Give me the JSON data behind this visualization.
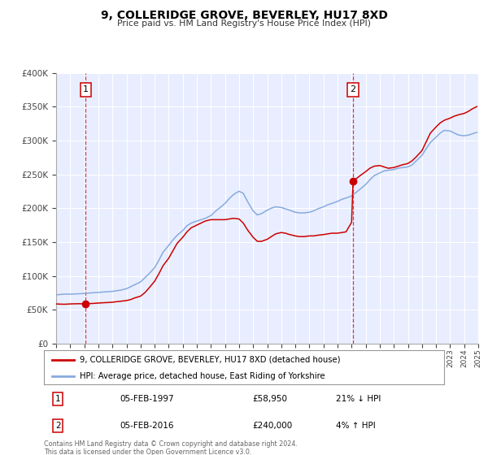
{
  "title": "9, COLLERIDGE GROVE, BEVERLEY, HU17 8XD",
  "subtitle": "Price paid vs. HM Land Registry's House Price Index (HPI)",
  "legend_label_red": "9, COLLERIDGE GROVE, BEVERLEY, HU17 8XD (detached house)",
  "legend_label_blue": "HPI: Average price, detached house, East Riding of Yorkshire",
  "ylim": [
    0,
    400000
  ],
  "yticks": [
    0,
    50000,
    100000,
    150000,
    200000,
    250000,
    300000,
    350000,
    400000
  ],
  "ytick_labels": [
    "£0",
    "£50K",
    "£100K",
    "£150K",
    "£200K",
    "£250K",
    "£300K",
    "£350K",
    "£400K"
  ],
  "plot_bg_color": "#e8eeff",
  "grid_color": "#ffffff",
  "red_color": "#cc0000",
  "blue_color": "#88aadd",
  "marker1_year": 1997.1,
  "marker1_value": 58950,
  "marker1_label": "1",
  "marker1_date": "05-FEB-1997",
  "marker1_price": "£58,950",
  "marker1_hpi": "21% ↓ HPI",
  "marker2_year": 2016.1,
  "marker2_value": 240000,
  "marker2_label": "2",
  "marker2_date": "05-FEB-2016",
  "marker2_price": "£240,000",
  "marker2_hpi": "4% ↑ HPI",
  "vline1_year": 1997.1,
  "vline2_year": 2016.1,
  "footer": "Contains HM Land Registry data © Crown copyright and database right 2024.\nThis data is licensed under the Open Government Licence v3.0.",
  "hpi_data": [
    [
      1995.0,
      72000
    ],
    [
      1995.3,
      72500
    ],
    [
      1995.6,
      73000
    ],
    [
      1996.0,
      73000
    ],
    [
      1996.3,
      73200
    ],
    [
      1996.6,
      73500
    ],
    [
      1997.0,
      74000
    ],
    [
      1997.3,
      74500
    ],
    [
      1997.6,
      75000
    ],
    [
      1998.0,
      75500
    ],
    [
      1998.3,
      76000
    ],
    [
      1998.6,
      76500
    ],
    [
      1999.0,
      77000
    ],
    [
      1999.3,
      78000
    ],
    [
      1999.6,
      79000
    ],
    [
      2000.0,
      81000
    ],
    [
      2000.3,
      84000
    ],
    [
      2000.6,
      87000
    ],
    [
      2001.0,
      91000
    ],
    [
      2001.3,
      97000
    ],
    [
      2001.6,
      103000
    ],
    [
      2002.0,
      112000
    ],
    [
      2002.3,
      123000
    ],
    [
      2002.6,
      135000
    ],
    [
      2003.0,
      145000
    ],
    [
      2003.3,
      153000
    ],
    [
      2003.6,
      160000
    ],
    [
      2004.0,
      167000
    ],
    [
      2004.3,
      174000
    ],
    [
      2004.6,
      178000
    ],
    [
      2005.0,
      181000
    ],
    [
      2005.3,
      183000
    ],
    [
      2005.6,
      185000
    ],
    [
      2006.0,
      189000
    ],
    [
      2006.3,
      195000
    ],
    [
      2006.6,
      200000
    ],
    [
      2007.0,
      207000
    ],
    [
      2007.3,
      214000
    ],
    [
      2007.6,
      220000
    ],
    [
      2008.0,
      225000
    ],
    [
      2008.3,
      222000
    ],
    [
      2008.6,
      210000
    ],
    [
      2009.0,
      196000
    ],
    [
      2009.3,
      190000
    ],
    [
      2009.6,
      192000
    ],
    [
      2010.0,
      197000
    ],
    [
      2010.3,
      200000
    ],
    [
      2010.6,
      202000
    ],
    [
      2011.0,
      201000
    ],
    [
      2011.3,
      199000
    ],
    [
      2011.6,
      197000
    ],
    [
      2012.0,
      194000
    ],
    [
      2012.3,
      193000
    ],
    [
      2012.6,
      193000
    ],
    [
      2013.0,
      194000
    ],
    [
      2013.3,
      196000
    ],
    [
      2013.6,
      199000
    ],
    [
      2014.0,
      202000
    ],
    [
      2014.3,
      205000
    ],
    [
      2014.6,
      207000
    ],
    [
      2015.0,
      210000
    ],
    [
      2015.3,
      213000
    ],
    [
      2015.6,
      215000
    ],
    [
      2016.0,
      218000
    ],
    [
      2016.3,
      223000
    ],
    [
      2016.6,
      228000
    ],
    [
      2017.0,
      235000
    ],
    [
      2017.3,
      242000
    ],
    [
      2017.6,
      248000
    ],
    [
      2018.0,
      252000
    ],
    [
      2018.3,
      255000
    ],
    [
      2018.6,
      256000
    ],
    [
      2019.0,
      257000
    ],
    [
      2019.3,
      259000
    ],
    [
      2019.6,
      260000
    ],
    [
      2020.0,
      261000
    ],
    [
      2020.3,
      264000
    ],
    [
      2020.6,
      270000
    ],
    [
      2021.0,
      278000
    ],
    [
      2021.3,
      288000
    ],
    [
      2021.6,
      297000
    ],
    [
      2022.0,
      305000
    ],
    [
      2022.3,
      311000
    ],
    [
      2022.6,
      315000
    ],
    [
      2023.0,
      314000
    ],
    [
      2023.3,
      311000
    ],
    [
      2023.6,
      308000
    ],
    [
      2024.0,
      307000
    ],
    [
      2024.3,
      308000
    ],
    [
      2024.6,
      310000
    ],
    [
      2024.9,
      312000
    ]
  ],
  "price_data": [
    [
      1995.0,
      58500
    ],
    [
      1995.3,
      58200
    ],
    [
      1995.6,
      58000
    ],
    [
      1996.0,
      58500
    ],
    [
      1996.3,
      58700
    ],
    [
      1996.6,
      58800
    ],
    [
      1997.0,
      58700
    ],
    [
      1997.1,
      58950
    ],
    [
      1997.3,
      59000
    ],
    [
      1997.6,
      59200
    ],
    [
      1998.0,
      59800
    ],
    [
      1998.3,
      60200
    ],
    [
      1998.6,
      60500
    ],
    [
      1999.0,
      61000
    ],
    [
      1999.3,
      61800
    ],
    [
      1999.6,
      62500
    ],
    [
      2000.0,
      63500
    ],
    [
      2000.3,
      65000
    ],
    [
      2000.6,
      67500
    ],
    [
      2001.0,
      70000
    ],
    [
      2001.3,
      75000
    ],
    [
      2001.6,
      82000
    ],
    [
      2002.0,
      92000
    ],
    [
      2002.3,
      103000
    ],
    [
      2002.6,
      115000
    ],
    [
      2003.0,
      126000
    ],
    [
      2003.3,
      137000
    ],
    [
      2003.6,
      148000
    ],
    [
      2004.0,
      157000
    ],
    [
      2004.3,
      165000
    ],
    [
      2004.6,
      171000
    ],
    [
      2005.0,
      175000
    ],
    [
      2005.3,
      178000
    ],
    [
      2005.6,
      181000
    ],
    [
      2006.0,
      183000
    ],
    [
      2006.3,
      183000
    ],
    [
      2006.6,
      183000
    ],
    [
      2007.0,
      183000
    ],
    [
      2007.3,
      184000
    ],
    [
      2007.6,
      185000
    ],
    [
      2008.0,
      184000
    ],
    [
      2008.3,
      178000
    ],
    [
      2008.6,
      168000
    ],
    [
      2009.0,
      157000
    ],
    [
      2009.3,
      151000
    ],
    [
      2009.6,
      151000
    ],
    [
      2010.0,
      154000
    ],
    [
      2010.3,
      158000
    ],
    [
      2010.6,
      162000
    ],
    [
      2011.0,
      164000
    ],
    [
      2011.3,
      163000
    ],
    [
      2011.6,
      161000
    ],
    [
      2012.0,
      159000
    ],
    [
      2012.3,
      158000
    ],
    [
      2012.6,
      158000
    ],
    [
      2013.0,
      159000
    ],
    [
      2013.3,
      159000
    ],
    [
      2013.6,
      160000
    ],
    [
      2014.0,
      161000
    ],
    [
      2014.3,
      162000
    ],
    [
      2014.6,
      163000
    ],
    [
      2015.0,
      163000
    ],
    [
      2015.3,
      164000
    ],
    [
      2015.6,
      165000
    ],
    [
      2016.0,
      179000
    ],
    [
      2016.1,
      240000
    ],
    [
      2016.3,
      243000
    ],
    [
      2016.6,
      248000
    ],
    [
      2017.0,
      254000
    ],
    [
      2017.3,
      259000
    ],
    [
      2017.6,
      262000
    ],
    [
      2018.0,
      263000
    ],
    [
      2018.3,
      261000
    ],
    [
      2018.6,
      259000
    ],
    [
      2019.0,
      260000
    ],
    [
      2019.3,
      262000
    ],
    [
      2019.6,
      264000
    ],
    [
      2020.0,
      266000
    ],
    [
      2020.3,
      270000
    ],
    [
      2020.6,
      276000
    ],
    [
      2021.0,
      285000
    ],
    [
      2021.3,
      298000
    ],
    [
      2021.6,
      311000
    ],
    [
      2022.0,
      320000
    ],
    [
      2022.3,
      326000
    ],
    [
      2022.6,
      330000
    ],
    [
      2023.0,
      333000
    ],
    [
      2023.3,
      336000
    ],
    [
      2023.6,
      338000
    ],
    [
      2024.0,
      340000
    ],
    [
      2024.3,
      343000
    ],
    [
      2024.6,
      347000
    ],
    [
      2024.9,
      350000
    ]
  ]
}
